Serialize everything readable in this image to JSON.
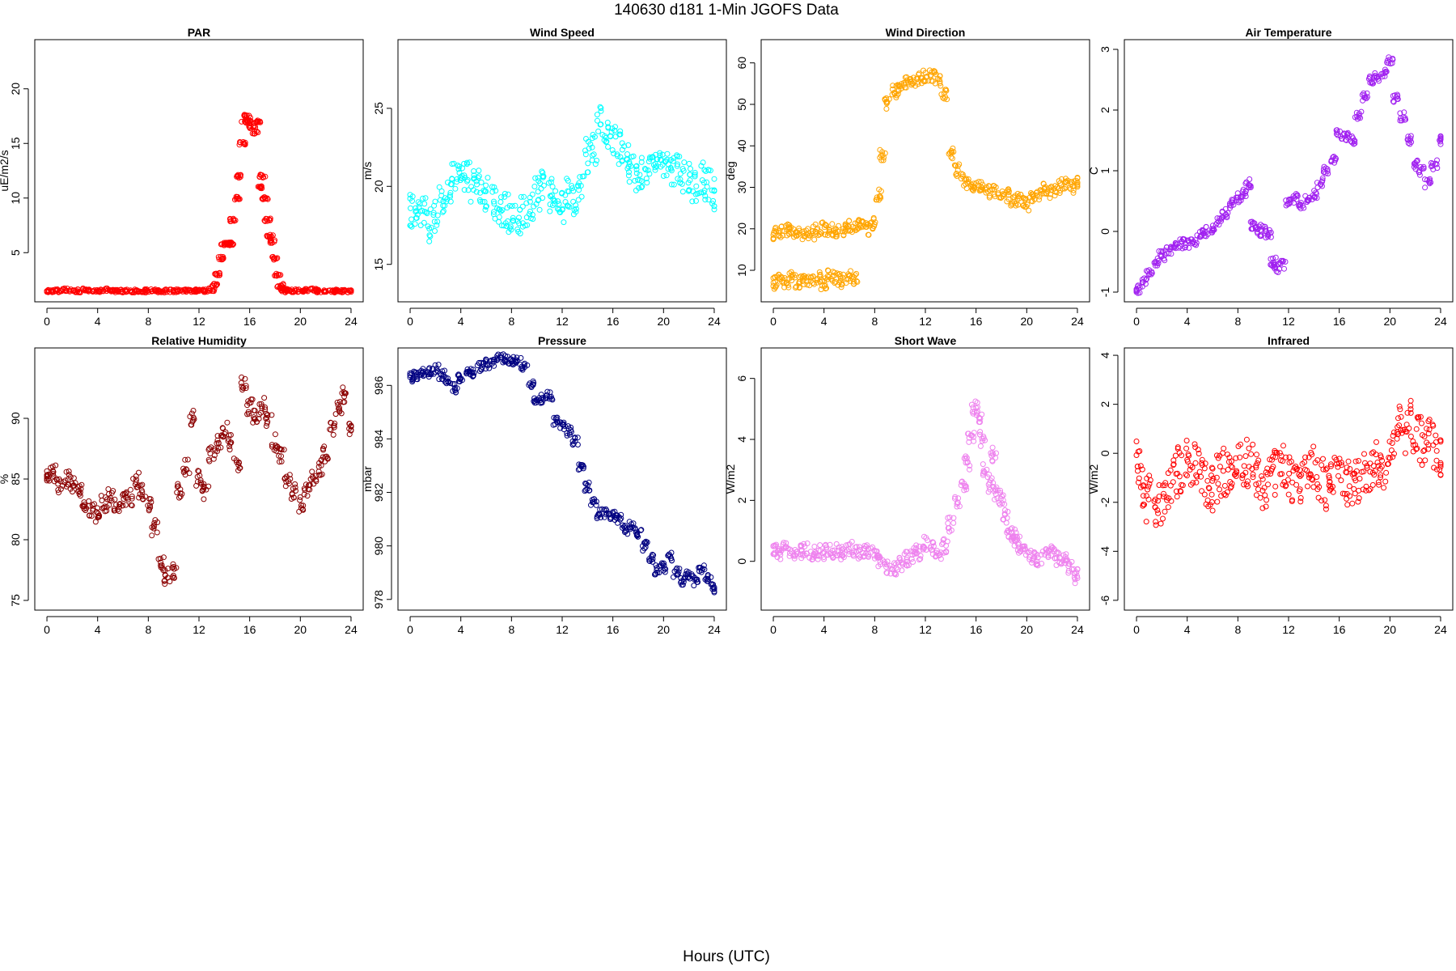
{
  "figure": {
    "title": "140630   d181   1-Min  JGOFS Data",
    "xlabel": "Hours (UTC)"
  },
  "chart_data": [
    {
      "type": "scatter",
      "title": "PAR",
      "ylabel": "uE/m2/s",
      "color": "#ff0000",
      "xlim": [
        -0.96,
        24.96
      ],
      "ylim": [
        0.5,
        24.5
      ],
      "xticks": [
        0,
        4,
        8,
        12,
        16,
        20,
        24
      ],
      "yticks": [
        5,
        10,
        15,
        20
      ],
      "x": [
        0,
        0.5,
        1,
        1.5,
        2,
        2.5,
        3,
        3.5,
        4,
        4.5,
        5,
        5.5,
        6,
        6.5,
        7,
        7.5,
        8,
        8.5,
        9,
        9.5,
        10,
        10.5,
        11,
        11.5,
        12,
        12.5,
        13,
        13.3,
        13.5,
        13.7,
        14,
        14.3,
        14.5,
        14.7,
        15,
        15.2,
        15.4,
        15.6,
        15.8,
        16,
        16.2,
        16.4,
        16.6,
        16.8,
        17,
        17.2,
        17.4,
        17.6,
        17.8,
        18,
        18.2,
        18.4,
        18.6,
        18.8,
        19,
        19.5,
        20,
        20.5,
        21,
        21.5,
        22,
        22.5,
        23,
        23.5,
        24
      ],
      "y": [
        1.5,
        1.5,
        1.5,
        1.6,
        1.5,
        1.5,
        1.6,
        1.5,
        1.5,
        1.6,
        1.5,
        1.5,
        1.5,
        1.5,
        1.5,
        1.5,
        1.5,
        1.5,
        1.5,
        1.5,
        1.5,
        1.5,
        1.5,
        1.5,
        1.5,
        1.5,
        1.6,
        2,
        3,
        4.5,
        5.8,
        5.8,
        5.8,
        8,
        10,
        12,
        15,
        17,
        17.5,
        17,
        16.5,
        16,
        17,
        11,
        12,
        10,
        8,
        6.5,
        6,
        4.5,
        3,
        2,
        1.7,
        1.6,
        1.5,
        1.5,
        1.5,
        1.6,
        1.6,
        1.5,
        1.5,
        1.5,
        1.5,
        1.5,
        1.5
      ]
    },
    {
      "type": "scatter",
      "title": "Wind Speed",
      "ylabel": "m/s",
      "color": "#00ffff",
      "xlim": [
        -0.96,
        24.96
      ],
      "ylim": [
        12.6,
        29.4
      ],
      "xticks": [
        0,
        4,
        8,
        12,
        16,
        20,
        24
      ],
      "yticks": [
        15,
        20,
        25
      ],
      "x": [
        0,
        0.5,
        1,
        1.5,
        2,
        2.5,
        3,
        3.5,
        4,
        4.5,
        5,
        5.5,
        6,
        6.5,
        7,
        7.5,
        8,
        8.5,
        9,
        9.5,
        10,
        10.5,
        11,
        11.5,
        12,
        12.5,
        13,
        13.5,
        14,
        14.5,
        15,
        15.5,
        16,
        16.5,
        17,
        17.5,
        18,
        18.5,
        19,
        19.5,
        20,
        20.5,
        21,
        21.5,
        22,
        22.5,
        23,
        23.5,
        24
      ],
      "y": [
        18.5,
        18,
        18.2,
        17.5,
        18,
        19,
        19.5,
        20.5,
        21,
        20.5,
        20,
        20,
        19.5,
        19,
        18.5,
        18.5,
        18,
        17.8,
        18.5,
        19,
        19.5,
        20,
        19.5,
        19,
        18.5,
        19.5,
        19,
        20,
        22,
        22.5,
        24,
        23.5,
        23,
        22.5,
        22,
        21,
        20.5,
        21,
        21.5,
        22,
        21.5,
        21,
        21,
        20.5,
        20.5,
        20,
        20.5,
        20,
        19.5
      ]
    },
    {
      "type": "scatter",
      "title": "Wind Direction",
      "ylabel": "deg",
      "color": "#ffa500",
      "xlim": [
        -0.96,
        24.96
      ],
      "ylim": [
        2.4,
        65.6
      ],
      "xticks": [
        0,
        4,
        8,
        12,
        16,
        20,
        24
      ],
      "yticks": [
        10,
        20,
        30,
        40,
        50,
        60
      ],
      "x": [
        0,
        0.5,
        1,
        1.5,
        2,
        2.5,
        3,
        3.5,
        4,
        4.5,
        5,
        5.5,
        6,
        6.5,
        7,
        7.5,
        8,
        0,
        0.5,
        1,
        1.5,
        2,
        2.5,
        3,
        3.5,
        4,
        4.5,
        5,
        5.5,
        6,
        6.5,
        8.3,
        8.6,
        9,
        9.5,
        10,
        10.5,
        11,
        11.5,
        12,
        12.5,
        13,
        13.5,
        14,
        14.5,
        15,
        15.5,
        16,
        16.5,
        17,
        17.5,
        18,
        18.5,
        19,
        19.5,
        20,
        20.5,
        21,
        21.5,
        22,
        22.5,
        23,
        23.5,
        24
      ],
      "y": [
        19,
        19,
        19.5,
        19.5,
        19,
        18.5,
        19,
        19.5,
        20,
        20,
        19.5,
        20,
        20.5,
        21,
        21,
        20,
        21,
        7,
        7.5,
        7,
        8,
        7,
        8,
        7.5,
        8,
        7,
        8.5,
        8,
        7.5,
        8.5,
        8,
        28,
        38,
        50,
        53,
        54,
        55,
        55,
        56,
        57,
        57,
        56,
        52,
        38,
        34,
        32,
        31,
        30,
        30,
        29,
        29,
        28,
        28,
        27,
        27,
        26,
        28,
        28,
        30,
        29,
        30,
        31,
        30,
        31
      ]
    },
    {
      "type": "scatter",
      "title": "Air Temperature",
      "ylabel": "C",
      "color": "#a020f0",
      "xlim": [
        -0.96,
        24.96
      ],
      "ylim": [
        -1.16,
        3.16
      ],
      "xticks": [
        0,
        4,
        8,
        12,
        16,
        20,
        24
      ],
      "yticks": [
        -1,
        0,
        1,
        2,
        3
      ],
      "x": [
        0,
        0.5,
        1,
        1.5,
        2,
        2.5,
        3,
        3.5,
        4,
        4.5,
        5,
        5.5,
        6,
        6.5,
        7,
        7.5,
        8,
        8.4,
        8.8,
        9.2,
        9.6,
        10,
        10.4,
        10.8,
        11,
        11.5,
        12,
        12.5,
        13,
        13.5,
        14,
        14.5,
        15,
        15.5,
        16,
        16.5,
        17,
        17.5,
        18,
        18.5,
        19,
        19.5,
        20,
        20.5,
        21,
        21.5,
        22,
        22.5,
        23,
        23.5,
        24
      ],
      "y": [
        -0.95,
        -0.85,
        -0.7,
        -0.5,
        -0.4,
        -0.3,
        -0.25,
        -0.2,
        -0.2,
        -0.15,
        -0.05,
        0,
        0.05,
        0.15,
        0.3,
        0.45,
        0.55,
        0.65,
        0.8,
        0.1,
        0,
        0.05,
        -0.05,
        -0.5,
        -0.6,
        -0.55,
        0.5,
        0.55,
        0.45,
        0.55,
        0.6,
        0.8,
        1.0,
        1.2,
        1.6,
        1.55,
        1.5,
        1.9,
        2.2,
        2.5,
        2.55,
        2.6,
        2.8,
        2.2,
        1.9,
        1.5,
        1.1,
        1.0,
        0.8,
        1.1,
        1.5
      ]
    },
    {
      "type": "scatter",
      "title": "Relative Humidity",
      "ylabel": "%",
      "color": "#8b0000",
      "xlim": [
        -0.96,
        24.96
      ],
      "ylim": [
        74.2,
        95.8
      ],
      "xticks": [
        0,
        4,
        8,
        12,
        16,
        20,
        24
      ],
      "yticks": [
        75,
        80,
        85,
        90
      ],
      "x": [
        0,
        0.5,
        1,
        1.5,
        2,
        2.5,
        3,
        3.5,
        4,
        4.5,
        5,
        5.5,
        6,
        6.5,
        7,
        7.5,
        8,
        8.5,
        9,
        9.5,
        10,
        10.5,
        11,
        11.5,
        12,
        12.5,
        13,
        13.5,
        14,
        14.5,
        15,
        15.5,
        16,
        16.5,
        17,
        17.5,
        18,
        18.5,
        19,
        19.5,
        20,
        20.5,
        21,
        21.5,
        22,
        22.5,
        23,
        23.5,
        24
      ],
      "y": [
        85,
        85.5,
        84.5,
        85,
        84.5,
        84,
        83,
        82.5,
        82,
        83,
        83.5,
        83,
        83.5,
        83.5,
        85,
        84,
        83,
        81,
        78,
        77,
        77.5,
        84,
        86,
        90,
        85,
        84,
        87,
        88,
        89,
        88,
        86,
        93,
        91,
        90,
        91,
        90,
        88,
        87,
        85,
        84,
        83,
        84,
        85,
        86,
        87,
        89,
        91,
        92,
        89
      ]
    },
    {
      "type": "scatter",
      "title": "Pressure",
      "ylabel": "mbar",
      "color": "#000080",
      "xlim": [
        -0.96,
        24.96
      ],
      "ylim": [
        977.6,
        987.4
      ],
      "xticks": [
        0,
        4,
        8,
        12,
        16,
        20,
        24
      ],
      "yticks": [
        978,
        980,
        982,
        984,
        986
      ],
      "x": [
        0,
        0.5,
        1,
        1.5,
        2,
        2.5,
        3,
        3.5,
        4,
        4.5,
        5,
        5.5,
        6,
        6.5,
        7,
        7.5,
        8,
        8.5,
        9,
        9.5,
        10,
        10.5,
        11,
        11.5,
        12,
        12.5,
        13,
        13.5,
        14,
        14.5,
        15,
        15.5,
        16,
        16.5,
        17,
        17.5,
        18,
        18.5,
        19,
        19.5,
        20,
        20.5,
        21,
        21.5,
        22,
        22.5,
        23,
        23.5,
        24
      ],
      "y": [
        986.3,
        986.4,
        986.5,
        986.5,
        986.6,
        986.4,
        986.2,
        985.9,
        986.3,
        986.6,
        986.5,
        986.7,
        986.8,
        986.9,
        987,
        987,
        986.9,
        986.9,
        986.7,
        986,
        985.5,
        985.5,
        985.6,
        984.7,
        984.5,
        984.3,
        983.9,
        983,
        982.2,
        981.6,
        981.2,
        981.2,
        981.1,
        981,
        980.6,
        980.8,
        980.5,
        980,
        979.5,
        979.1,
        979.2,
        979.6,
        979,
        978.7,
        978.9,
        978.7,
        979.1,
        978.8,
        978.4
      ]
    },
    {
      "type": "scatter",
      "title": "Short Wave",
      "ylabel": "W/m2",
      "color": "#ee82ee",
      "xlim": [
        -0.96,
        24.96
      ],
      "ylim": [
        -1.6,
        7.0
      ],
      "xticks": [
        0,
        4,
        8,
        12,
        16,
        20,
        24
      ],
      "yticks": [
        0,
        2,
        4,
        6
      ],
      "x": [
        0,
        0.5,
        1,
        1.5,
        2,
        2.5,
        3,
        3.5,
        4,
        4.5,
        5,
        5.5,
        6,
        6.5,
        7,
        7.5,
        8,
        8.5,
        9,
        9.5,
        10,
        10.5,
        11,
        11.5,
        12,
        12.5,
        13,
        13.5,
        14,
        14.5,
        15,
        15.3,
        15.6,
        15.9,
        16.2,
        16.5,
        16.8,
        17.1,
        17.4,
        17.7,
        18,
        18.3,
        18.6,
        18.9,
        19.2,
        19.5,
        20,
        20.5,
        21,
        21.5,
        22,
        22.5,
        23,
        23.5,
        24
      ],
      "y": [
        0.3,
        0.3,
        0.4,
        0.3,
        0.3,
        0.4,
        0.3,
        0.3,
        0.3,
        0.3,
        0.4,
        0.3,
        0.4,
        0.3,
        0.3,
        0.3,
        0.3,
        0,
        -0.2,
        -0.3,
        -0.1,
        0.1,
        0.2,
        0.3,
        0.6,
        0.4,
        0.3,
        0.5,
        1.2,
        2.0,
        2.5,
        3.2,
        4.0,
        5.0,
        4.8,
        4.0,
        3.0,
        2.5,
        3.5,
        2.2,
        2.0,
        1.5,
        1.0,
        0.8,
        0.6,
        0.5,
        0.3,
        0.2,
        0.1,
        0.2,
        0.3,
        0.1,
        0,
        -0.2,
        -0.5
      ]
    },
    {
      "type": "scatter",
      "title": "Infrared",
      "ylabel": "W/m2",
      "color": "#ff0000",
      "xlim": [
        -0.96,
        24.96
      ],
      "ylim": [
        -6.4,
        4.3
      ],
      "xticks": [
        0,
        4,
        8,
        12,
        16,
        20,
        24
      ],
      "yticks": [
        -6,
        -4,
        -2,
        0,
        2,
        4
      ],
      "x": [
        0,
        0.5,
        1,
        1.5,
        2,
        2.5,
        3,
        3.5,
        4,
        4.5,
        5,
        5.5,
        6,
        6.5,
        7,
        7.5,
        8,
        8.5,
        9,
        9.5,
        10,
        10.5,
        11,
        11.5,
        12,
        12.5,
        13,
        13.5,
        14,
        14.5,
        15,
        15.5,
        16,
        16.5,
        17,
        17.5,
        18,
        18.5,
        19,
        19.5,
        20,
        20.5,
        21,
        21.5,
        22,
        22.5,
        23,
        23.5,
        24
      ],
      "y": [
        -0.5,
        -1.2,
        -1.8,
        -2.2,
        -2.0,
        -1.5,
        -1.0,
        -0.6,
        -0.4,
        -0.5,
        -0.8,
        -1.2,
        -1.5,
        -1.0,
        -0.8,
        -0.6,
        -0.5,
        -0.4,
        -0.6,
        -1.0,
        -1.5,
        -1.2,
        -0.8,
        -0.6,
        -0.9,
        -1.5,
        -1.2,
        -0.8,
        -0.6,
        -1.0,
        -1.5,
        -0.8,
        -0.5,
        -1.2,
        -1.5,
        -1.0,
        -0.8,
        -0.6,
        -0.3,
        -0.5,
        0.2,
        0.6,
        1.0,
        1.3,
        0.8,
        0.5,
        0.6,
        0.2,
        -0.2
      ]
    }
  ]
}
